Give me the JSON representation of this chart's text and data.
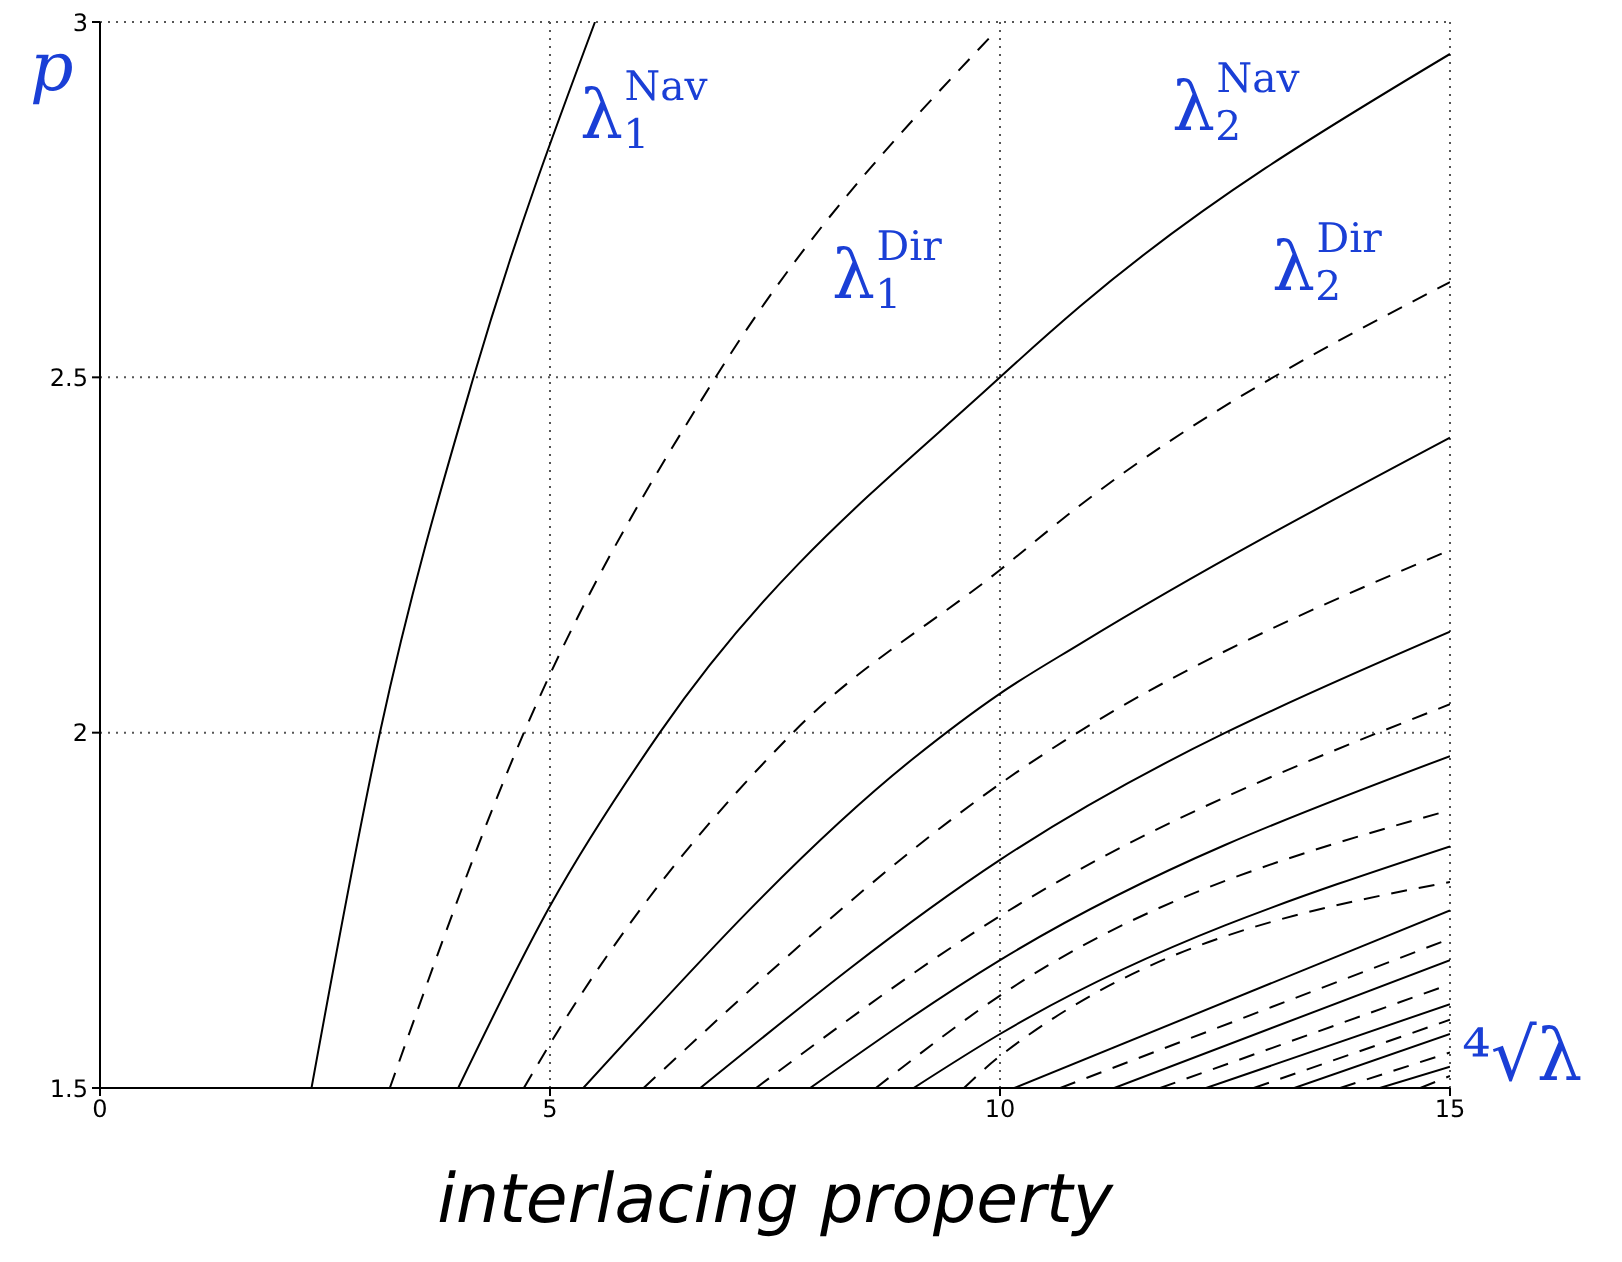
{
  "chart_data": {
    "type": "line",
    "ylabel": "p",
    "xlabel": "⁴√λ",
    "xlim": [
      0,
      15
    ],
    "ylim": [
      1.5,
      3
    ],
    "xticks": [
      0,
      5,
      10,
      15
    ],
    "yticks": [
      1.5,
      2,
      2.5,
      3
    ],
    "grid": true,
    "legend": false,
    "marker": "none",
    "annotations": [
      "interlacing property"
    ],
    "series": [
      {
        "name": "λ$_{1}$$^{Nav}$",
        "color": "#000000",
        "line_style": "solid",
        "x": [
          2.35,
          3.11,
          4.15,
          5.5
        ],
        "values": [
          1.5,
          2,
          2.5,
          3
        ]
      },
      {
        "name": "λ$_{1}$$^{Dir}$",
        "color": "#000000",
        "line_style": "dashed",
        "x": [
          3.22,
          4.71,
          6.84,
          9.9
        ],
        "values": [
          1.5,
          2,
          2.5,
          2.98
        ]
      },
      {
        "name": "λ$_{2}$$^{Nav}$",
        "color": "#000000",
        "line_style": "solid",
        "x": [
          3.98,
          5,
          6.22,
          10,
          10.89,
          15
        ],
        "values": [
          1.5,
          1.756,
          2,
          2.5,
          2.6,
          2.955
        ]
      },
      {
        "name": "λ$_{2}$$^{Dir}$",
        "color": "#000000",
        "line_style": "dashed",
        "x": [
          4.71,
          5,
          7.7,
          10,
          10.89,
          15
        ],
        "values": [
          1.5,
          1.562,
          2,
          2.229,
          2.32,
          2.634
        ]
      },
      {
        "color": "#000000",
        "line_style": "solid",
        "x": [
          5.37,
          9.04,
          10,
          10.89,
          15
        ],
        "values": [
          1.5,
          1.964,
          2.055,
          2.125,
          2.415
        ]
      },
      {
        "color": "#000000",
        "line_style": "dashed",
        "x": [
          6.04,
          10,
          15
        ],
        "values": [
          1.5,
          1.928,
          2.257
        ]
      },
      {
        "color": "#000000",
        "line_style": "solid",
        "x": [
          6.67,
          10,
          15
        ],
        "values": [
          1.5,
          1.821,
          2.142
        ]
      },
      {
        "color": "#000000",
        "line_style": "dashed",
        "x": [
          7.29,
          10,
          15
        ],
        "values": [
          1.5,
          1.742,
          2.04
        ]
      },
      {
        "color": "#000000",
        "line_style": "solid",
        "x": [
          7.89,
          10,
          15
        ],
        "values": [
          1.5,
          1.68,
          1.967
        ]
      },
      {
        "color": "#000000",
        "line_style": "dashed",
        "x": [
          8.62,
          10,
          15
        ],
        "values": [
          1.5,
          1.63,
          1.891
        ]
      },
      {
        "color": "#000000",
        "line_style": "solid",
        "x": [
          9.04,
          10,
          15
        ],
        "values": [
          1.5,
          1.576,
          1.84
        ]
      },
      {
        "color": "#000000",
        "line_style": "dashed",
        "x": [
          9.6,
          10,
          15
        ],
        "values": [
          1.5,
          1.545,
          1.79
        ]
      },
      {
        "color": "#000000",
        "line_style": "solid",
        "x": [
          10.16,
          15
        ],
        "values": [
          1.5,
          1.75
        ]
      },
      {
        "color": "#000000",
        "line_style": "dashed",
        "x": [
          10.67,
          15
        ],
        "values": [
          1.5,
          1.71
        ]
      },
      {
        "color": "#000000",
        "line_style": "solid",
        "x": [
          11.27,
          15
        ],
        "values": [
          1.5,
          1.68
        ]
      },
      {
        "color": "#000000",
        "line_style": "dashed",
        "x": [
          11.78,
          15
        ],
        "values": [
          1.5,
          1.646
        ]
      },
      {
        "color": "#000000",
        "line_style": "solid",
        "x": [
          12.29,
          15
        ],
        "values": [
          1.5,
          1.618
        ]
      },
      {
        "color": "#000000",
        "line_style": "dashed",
        "x": [
          12.82,
          15
        ],
        "values": [
          1.5,
          1.596
        ]
      },
      {
        "color": "#000000",
        "line_style": "solid",
        "x": [
          13.27,
          15
        ],
        "values": [
          1.5,
          1.576
        ]
      },
      {
        "color": "#000000",
        "line_style": "dashed",
        "x": [
          13.78,
          15
        ],
        "values": [
          1.5,
          1.55
        ]
      },
      {
        "color": "#000000",
        "line_style": "solid",
        "x": [
          14.22,
          15
        ],
        "values": [
          1.5,
          1.53
        ]
      },
      {
        "color": "#000000",
        "line_style": "dashed",
        "x": [
          14.67,
          15
        ],
        "values": [
          1.5,
          1.517
        ]
      }
    ]
  }
}
